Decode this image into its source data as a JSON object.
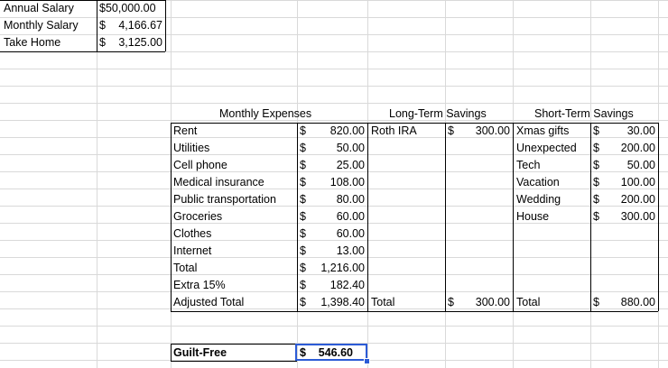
{
  "salary": {
    "annual_label": "Annual Salary",
    "annual_value": "$50,000.00",
    "monthly_label": "Monthly Salary",
    "monthly_dollar": "$",
    "monthly_amount": "4,166.67",
    "takehome_label": "Take Home",
    "takehome_dollar": "$",
    "takehome_amount": "3,125.00"
  },
  "headers": {
    "monthly": "Monthly Expenses",
    "longterm": "Long-Term Savings",
    "shortterm": "Short-Term Savings"
  },
  "expenses": [
    {
      "label": "Rent",
      "dollar": "$",
      "amount": "820.00"
    },
    {
      "label": "Utilities",
      "dollar": "$",
      "amount": "50.00"
    },
    {
      "label": "Cell phone",
      "dollar": "$",
      "amount": "25.00"
    },
    {
      "label": "Medical insurance",
      "dollar": "$",
      "amount": "108.00"
    },
    {
      "label": "Public transportation",
      "dollar": "$",
      "amount": "80.00"
    },
    {
      "label": "Groceries",
      "dollar": "$",
      "amount": "60.00"
    },
    {
      "label": "Clothes",
      "dollar": "$",
      "amount": "60.00"
    },
    {
      "label": "Internet",
      "dollar": "$",
      "amount": "13.00"
    },
    {
      "label": "Total",
      "dollar": "$",
      "amount": "1,216.00"
    },
    {
      "label": "Extra 15%",
      "dollar": "$",
      "amount": "182.40"
    },
    {
      "label": "Adjusted Total",
      "dollar": "$",
      "amount": "1,398.40"
    }
  ],
  "longterm": {
    "item_label": "Roth IRA",
    "item_dollar": "$",
    "item_amount": "300.00",
    "total_label": "Total",
    "total_dollar": "$",
    "total_amount": "300.00"
  },
  "shortterm": {
    "items": [
      {
        "label": "Xmas gifts",
        "dollar": "$",
        "amount": "30.00"
      },
      {
        "label": "Unexpected",
        "dollar": "$",
        "amount": "200.00"
      },
      {
        "label": "Tech",
        "dollar": "$",
        "amount": "50.00"
      },
      {
        "label": "Vacation",
        "dollar": "$",
        "amount": "100.00"
      },
      {
        "label": "Wedding",
        "dollar": "$",
        "amount": "200.00"
      },
      {
        "label": "House",
        "dollar": "$",
        "amount": "300.00"
      }
    ],
    "total_label": "Total",
    "total_dollar": "$",
    "total_amount": "880.00"
  },
  "guiltfree": {
    "label": "Guilt-Free",
    "dollar": "$",
    "amount": "546.60"
  }
}
